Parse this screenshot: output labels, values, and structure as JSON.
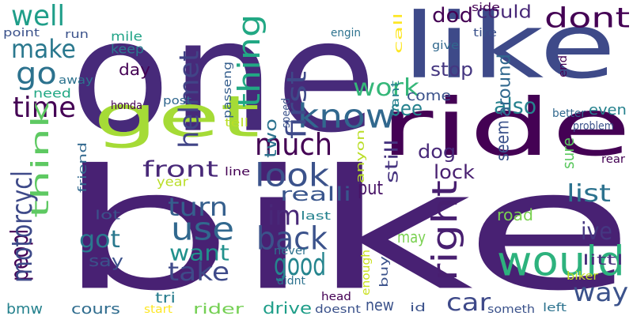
{
  "words": [
    {
      "text": "bike",
      "color": "#482173"
    },
    {
      "text": "one",
      "color": "#472a7a"
    },
    {
      "text": "like",
      "color": "#3e4a89"
    },
    {
      "text": "get",
      "color": "#a5db36"
    },
    {
      "text": "ride",
      "color": "#440154"
    },
    {
      "text": "would",
      "color": "#2db27d"
    },
    {
      "text": "know",
      "color": "#31688e"
    },
    {
      "text": "dont",
      "color": "#440154"
    },
    {
      "text": "much",
      "color": "#440154"
    },
    {
      "text": "look",
      "color": "#3b528b"
    },
    {
      "text": "use",
      "color": "#31688e"
    },
    {
      "text": "back",
      "color": "#3b528b"
    },
    {
      "text": "time",
      "color": "#440154"
    },
    {
      "text": "think",
      "color": "#5ec962"
    },
    {
      "text": "thing",
      "color": "#22a884"
    },
    {
      "text": "make",
      "color": "#2a788e"
    },
    {
      "text": "well",
      "color": "#1f9e89"
    },
    {
      "text": "go",
      "color": "#2c728e"
    },
    {
      "text": "first",
      "color": "#3e4989"
    },
    {
      "text": "helmet",
      "color": "#414487"
    },
    {
      "text": "work",
      "color": "#35b779"
    },
    {
      "text": "front",
      "color": "#482878"
    },
    {
      "text": "turn",
      "color": "#355f8d"
    },
    {
      "text": "want",
      "color": "#21918c"
    },
    {
      "text": "take",
      "color": "#3e4a89"
    },
    {
      "text": "good",
      "color": "#25858e"
    },
    {
      "text": "right",
      "color": "#481f70"
    },
    {
      "text": "got",
      "color": "#2a788e"
    },
    {
      "text": "peopl",
      "color": "#440154"
    },
    {
      "text": "motorcycl",
      "color": "#3e4a89"
    },
    {
      "text": "way",
      "color": "#3b528b"
    },
    {
      "text": "car",
      "color": "#3e4989"
    },
    {
      "text": "list",
      "color": "#2c728e"
    },
    {
      "text": "ive",
      "color": "#453781"
    },
    {
      "text": "im",
      "color": "#482878"
    },
    {
      "text": "see",
      "color": "#26828e"
    },
    {
      "text": "also",
      "color": "#26828e"
    },
    {
      "text": "dod",
      "color": "#440154"
    },
    {
      "text": "could",
      "color": "#482878"
    },
    {
      "text": "stop",
      "color": "#453781"
    },
    {
      "text": "around",
      "color": "#31688e"
    },
    {
      "text": "dog",
      "color": "#482878"
    },
    {
      "text": "lock",
      "color": "#481f70"
    },
    {
      "text": "realli",
      "color": "#39558c"
    },
    {
      "text": "put",
      "color": "#481467"
    },
    {
      "text": "two",
      "color": "#2c728e"
    },
    {
      "text": "still",
      "color": "#46337f"
    },
    {
      "text": "seem",
      "color": "#3b528b"
    },
    {
      "text": "sure",
      "color": "#5ec962"
    },
    {
      "text": "road",
      "color": "#7ad151"
    },
    {
      "text": "may",
      "color": "#7ad151"
    },
    {
      "text": "new",
      "color": "#3b528b"
    },
    {
      "text": "rider",
      "color": "#75d054"
    },
    {
      "text": "drive",
      "color": "#1f9e89"
    },
    {
      "text": "cours",
      "color": "#2f6c8e"
    },
    {
      "text": "tri",
      "color": "#287d8e"
    },
    {
      "text": "say",
      "color": "#3b528b"
    },
    {
      "text": "bmw",
      "color": "#26828e"
    },
    {
      "text": "come",
      "color": "#3b528b"
    },
    {
      "text": "even",
      "color": "#26828e"
    },
    {
      "text": "need",
      "color": "#22a884"
    },
    {
      "text": "year",
      "color": "#bade28"
    },
    {
      "text": "keep",
      "color": "#2a788e"
    },
    {
      "text": "mile",
      "color": "#20a386"
    },
    {
      "text": "day",
      "color": "#440154"
    },
    {
      "text": "littl",
      "color": "#472d7b"
    },
    {
      "text": "lot",
      "color": "#3b528b"
    },
    {
      "text": "side",
      "color": "#440154"
    },
    {
      "text": "tire",
      "color": "#3b528b"
    },
    {
      "text": "give",
      "color": "#31688e"
    },
    {
      "text": "engin",
      "color": "#2c728e"
    },
    {
      "text": "point",
      "color": "#3b528b"
    },
    {
      "text": "run",
      "color": "#3b528b"
    },
    {
      "text": "away",
      "color": "#2c728e"
    },
    {
      "text": "honda",
      "color": "#440154"
    },
    {
      "text": "post",
      "color": "#31688e"
    },
    {
      "text": "passeng",
      "color": "#355f8d"
    },
    {
      "text": "speed",
      "color": "#3b528b"
    },
    {
      "text": "tell",
      "color": "#bade28"
    },
    {
      "text": "friend",
      "color": "#31688e"
    },
    {
      "text": "line",
      "color": "#440154"
    },
    {
      "text": "cant",
      "color": "#26828e"
    },
    {
      "text": "call",
      "color": "#fde725"
    },
    {
      "text": "anyon",
      "color": "#bade28"
    },
    {
      "text": "better",
      "color": "#31688e"
    },
    {
      "text": "problem",
      "color": "#3b528b"
    },
    {
      "text": "end",
      "color": "#440154"
    },
    {
      "text": "rear",
      "color": "#440154"
    },
    {
      "text": "last",
      "color": "#26828e"
    },
    {
      "text": "never",
      "color": "#2c728e"
    },
    {
      "text": "enough",
      "color": "#cae11f"
    },
    {
      "text": "buy",
      "color": "#3b528b"
    },
    {
      "text": "didnt",
      "color": "#2c728e"
    },
    {
      "text": "biker",
      "color": "#c2df23"
    },
    {
      "text": "head",
      "color": "#440154"
    },
    {
      "text": "doesnt",
      "color": "#3b528b"
    },
    {
      "text": "id",
      "color": "#3b528b"
    },
    {
      "text": "someth",
      "color": "#3b528b"
    },
    {
      "text": "left",
      "color": "#2c728e"
    },
    {
      "text": "start",
      "color": "#fde725"
    }
  ]
}
